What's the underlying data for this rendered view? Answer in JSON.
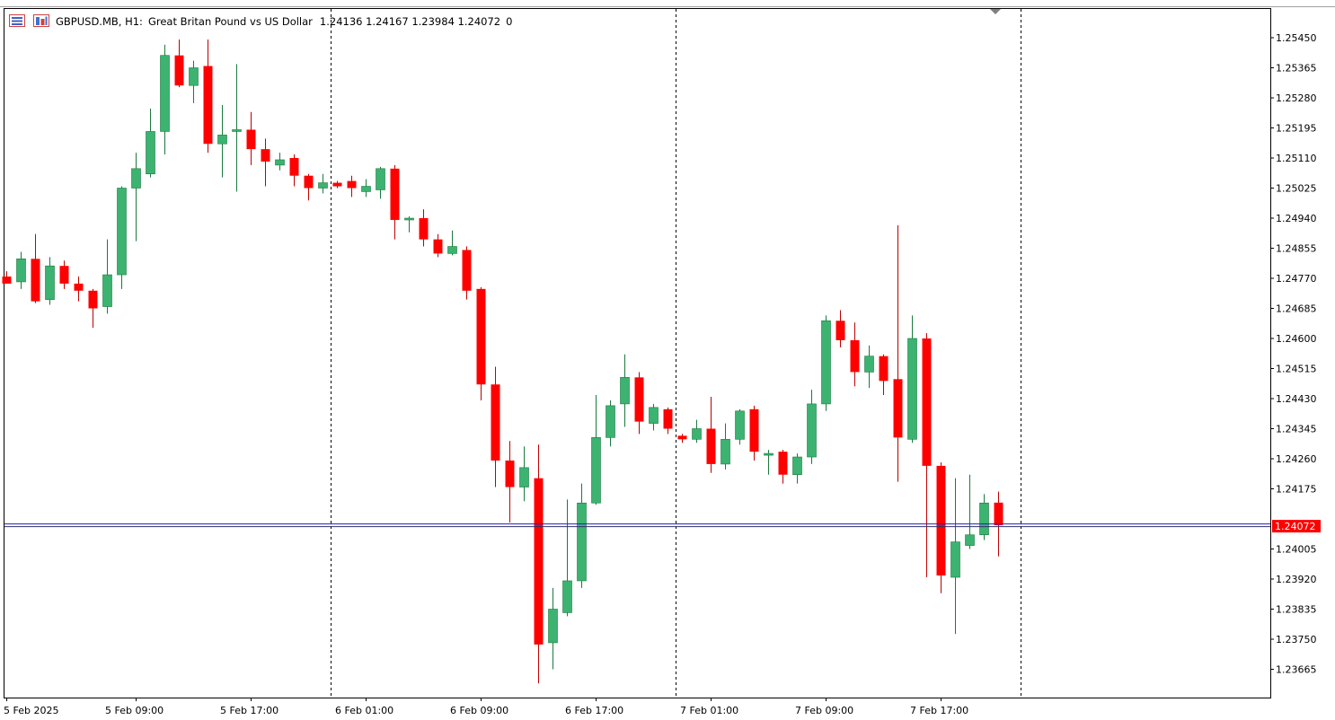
{
  "header": {
    "symbol": "GBPUSD.MB",
    "timeframe": "H1:",
    "description": "Great Britan Pound vs US Dollar",
    "ohlc": "1.24136 1.24167 1.23984 1.24072",
    "extra": "0",
    "icons": [
      "chart-list-icon",
      "chart-grid-icon"
    ]
  },
  "current_price_label": "1.24072",
  "colors": {
    "bull": "#3cb371",
    "bear": "#ff0000",
    "price_line": "#1e1ed2",
    "price_tag": "#ff0000",
    "grid": "#000000"
  },
  "chart_data": {
    "type": "candlestick",
    "symbol": "GBPUSD.MB",
    "timeframe": "H1",
    "ylim": [
      1.2358,
      1.25535
    ],
    "y_ticks": [
      "1.25450",
      "1.25365",
      "1.25280",
      "1.25195",
      "1.25110",
      "1.25025",
      "1.24940",
      "1.24855",
      "1.24770",
      "1.24685",
      "1.24600",
      "1.24515",
      "1.24430",
      "1.24345",
      "1.24260",
      "1.24175",
      "1.24005",
      "1.23920",
      "1.23835",
      "1.23750",
      "1.23665"
    ],
    "x_ticks": [
      {
        "label": "5 Feb 2025",
        "index": 0
      },
      {
        "label": "5 Feb 09:00",
        "index": 9
      },
      {
        "label": "5 Feb 17:00",
        "index": 17
      },
      {
        "label": "6 Feb 01:00",
        "index": 25
      },
      {
        "label": "6 Feb 09:00",
        "index": 33
      },
      {
        "label": "6 Feb 17:00",
        "index": 41
      },
      {
        "label": "7 Feb 01:00",
        "index": 49
      },
      {
        "label": "7 Feb 09:00",
        "index": 57
      },
      {
        "label": "7 Feb 17:00",
        "index": 65
      }
    ],
    "day_separators": [
      23,
      47,
      71
    ],
    "current_price": 1.24072,
    "candles": [
      {
        "o": 1.24775,
        "h": 1.2479,
        "l": 1.2476,
        "c": 1.24755
      },
      {
        "o": 1.2476,
        "h": 1.24845,
        "l": 1.2474,
        "c": 1.24825
      },
      {
        "o": 1.24825,
        "h": 1.24895,
        "l": 1.247,
        "c": 1.24705
      },
      {
        "o": 1.2471,
        "h": 1.2483,
        "l": 1.24695,
        "c": 1.24805
      },
      {
        "o": 1.24805,
        "h": 1.2482,
        "l": 1.2474,
        "c": 1.24755
      },
      {
        "o": 1.24755,
        "h": 1.24775,
        "l": 1.24705,
        "c": 1.24735
      },
      {
        "o": 1.24735,
        "h": 1.2474,
        "l": 1.2463,
        "c": 1.24685
      },
      {
        "o": 1.2469,
        "h": 1.2488,
        "l": 1.2467,
        "c": 1.2478
      },
      {
        "o": 1.2478,
        "h": 1.2503,
        "l": 1.2474,
        "c": 1.25025
      },
      {
        "o": 1.25025,
        "h": 1.25125,
        "l": 1.24875,
        "c": 1.2508
      },
      {
        "o": 1.25065,
        "h": 1.2525,
        "l": 1.25055,
        "c": 1.25185
      },
      {
        "o": 1.25185,
        "h": 1.2543,
        "l": 1.2512,
        "c": 1.254
      },
      {
        "o": 1.254,
        "h": 1.25445,
        "l": 1.2531,
        "c": 1.25315
      },
      {
        "o": 1.25315,
        "h": 1.25385,
        "l": 1.25265,
        "c": 1.25365
      },
      {
        "o": 1.2537,
        "h": 1.25445,
        "l": 1.25125,
        "c": 1.2515
      },
      {
        "o": 1.2515,
        "h": 1.2526,
        "l": 1.25055,
        "c": 1.25175
      },
      {
        "o": 1.25185,
        "h": 1.25375,
        "l": 1.25015,
        "c": 1.2519
      },
      {
        "o": 1.2519,
        "h": 1.2524,
        "l": 1.2509,
        "c": 1.25135
      },
      {
        "o": 1.25135,
        "h": 1.25165,
        "l": 1.2503,
        "c": 1.251
      },
      {
        "o": 1.2509,
        "h": 1.25125,
        "l": 1.25075,
        "c": 1.25105
      },
      {
        "o": 1.2511,
        "h": 1.2512,
        "l": 1.2503,
        "c": 1.2506
      },
      {
        "o": 1.2506,
        "h": 1.25065,
        "l": 1.2499,
        "c": 1.25025
      },
      {
        "o": 1.25025,
        "h": 1.25065,
        "l": 1.2501,
        "c": 1.2504
      },
      {
        "o": 1.2504,
        "h": 1.25045,
        "l": 1.25025,
        "c": 1.2503
      },
      {
        "o": 1.25045,
        "h": 1.2506,
        "l": 1.25,
        "c": 1.25025
      },
      {
        "o": 1.25015,
        "h": 1.2505,
        "l": 1.25,
        "c": 1.2503
      },
      {
        "o": 1.2502,
        "h": 1.25085,
        "l": 1.24995,
        "c": 1.2508
      },
      {
        "o": 1.2508,
        "h": 1.2509,
        "l": 1.2488,
        "c": 1.24935
      },
      {
        "o": 1.24935,
        "h": 1.24945,
        "l": 1.249,
        "c": 1.2494
      },
      {
        "o": 1.2494,
        "h": 1.24965,
        "l": 1.2486,
        "c": 1.2488
      },
      {
        "o": 1.2488,
        "h": 1.24895,
        "l": 1.2483,
        "c": 1.2484
      },
      {
        "o": 1.2484,
        "h": 1.24905,
        "l": 1.24835,
        "c": 1.2486
      },
      {
        "o": 1.2485,
        "h": 1.2486,
        "l": 1.2471,
        "c": 1.24735
      },
      {
        "o": 1.2474,
        "h": 1.24745,
        "l": 1.24425,
        "c": 1.2447
      },
      {
        "o": 1.2447,
        "h": 1.2452,
        "l": 1.2418,
        "c": 1.24255
      },
      {
        "o": 1.24255,
        "h": 1.2431,
        "l": 1.2408,
        "c": 1.2418
      },
      {
        "o": 1.2418,
        "h": 1.24295,
        "l": 1.2414,
        "c": 1.24235
      },
      {
        "o": 1.24205,
        "h": 1.243,
        "l": 1.23625,
        "c": 1.23735
      },
      {
        "o": 1.2374,
        "h": 1.23895,
        "l": 1.23665,
        "c": 1.23835
      },
      {
        "o": 1.23825,
        "h": 1.24145,
        "l": 1.23815,
        "c": 1.23915
      },
      {
        "o": 1.23915,
        "h": 1.2419,
        "l": 1.23895,
        "c": 1.24135
      },
      {
        "o": 1.24135,
        "h": 1.2444,
        "l": 1.2413,
        "c": 1.2432
      },
      {
        "o": 1.2432,
        "h": 1.24425,
        "l": 1.24295,
        "c": 1.2441
      },
      {
        "o": 1.24415,
        "h": 1.24555,
        "l": 1.2435,
        "c": 1.2449
      },
      {
        "o": 1.2449,
        "h": 1.24505,
        "l": 1.2433,
        "c": 1.24365
      },
      {
        "o": 1.2436,
        "h": 1.24415,
        "l": 1.2434,
        "c": 1.24405
      },
      {
        "o": 1.244,
        "h": 1.24405,
        "l": 1.2433,
        "c": 1.24345
      },
      {
        "o": 1.24325,
        "h": 1.2433,
        "l": 1.24305,
        "c": 1.24315
      },
      {
        "o": 1.24315,
        "h": 1.2437,
        "l": 1.24305,
        "c": 1.24345
      },
      {
        "o": 1.24345,
        "h": 1.24435,
        "l": 1.2422,
        "c": 1.24245
      },
      {
        "o": 1.24245,
        "h": 1.2436,
        "l": 1.2423,
        "c": 1.24315
      },
      {
        "o": 1.24315,
        "h": 1.244,
        "l": 1.243,
        "c": 1.24395
      },
      {
        "o": 1.244,
        "h": 1.2441,
        "l": 1.24255,
        "c": 1.2428
      },
      {
        "o": 1.2427,
        "h": 1.24285,
        "l": 1.24215,
        "c": 1.24275
      },
      {
        "o": 1.2428,
        "h": 1.24285,
        "l": 1.2419,
        "c": 1.24215
      },
      {
        "o": 1.24215,
        "h": 1.24275,
        "l": 1.2419,
        "c": 1.24265
      },
      {
        "o": 1.24265,
        "h": 1.24455,
        "l": 1.24245,
        "c": 1.24415
      },
      {
        "o": 1.24415,
        "h": 1.24665,
        "l": 1.24395,
        "c": 1.2465
      },
      {
        "o": 1.2465,
        "h": 1.2468,
        "l": 1.24575,
        "c": 1.24595
      },
      {
        "o": 1.24595,
        "h": 1.24645,
        "l": 1.24465,
        "c": 1.24505
      },
      {
        "o": 1.24505,
        "h": 1.2458,
        "l": 1.2446,
        "c": 1.2455
      },
      {
        "o": 1.2455,
        "h": 1.24555,
        "l": 1.2444,
        "c": 1.2448
      },
      {
        "o": 1.24485,
        "h": 1.2492,
        "l": 1.24195,
        "c": 1.2432
      },
      {
        "o": 1.24315,
        "h": 1.24665,
        "l": 1.24305,
        "c": 1.246
      },
      {
        "o": 1.246,
        "h": 1.24615,
        "l": 1.23925,
        "c": 1.2424
      },
      {
        "o": 1.2424,
        "h": 1.2425,
        "l": 1.2388,
        "c": 1.2393
      },
      {
        "o": 1.23925,
        "h": 1.24205,
        "l": 1.23765,
        "c": 1.24025
      },
      {
        "o": 1.24015,
        "h": 1.24215,
        "l": 1.24005,
        "c": 1.24045
      },
      {
        "o": 1.24045,
        "h": 1.2416,
        "l": 1.2403,
        "c": 1.24135
      },
      {
        "o": 1.24136,
        "h": 1.24167,
        "l": 1.23984,
        "c": 1.24072
      }
    ]
  }
}
